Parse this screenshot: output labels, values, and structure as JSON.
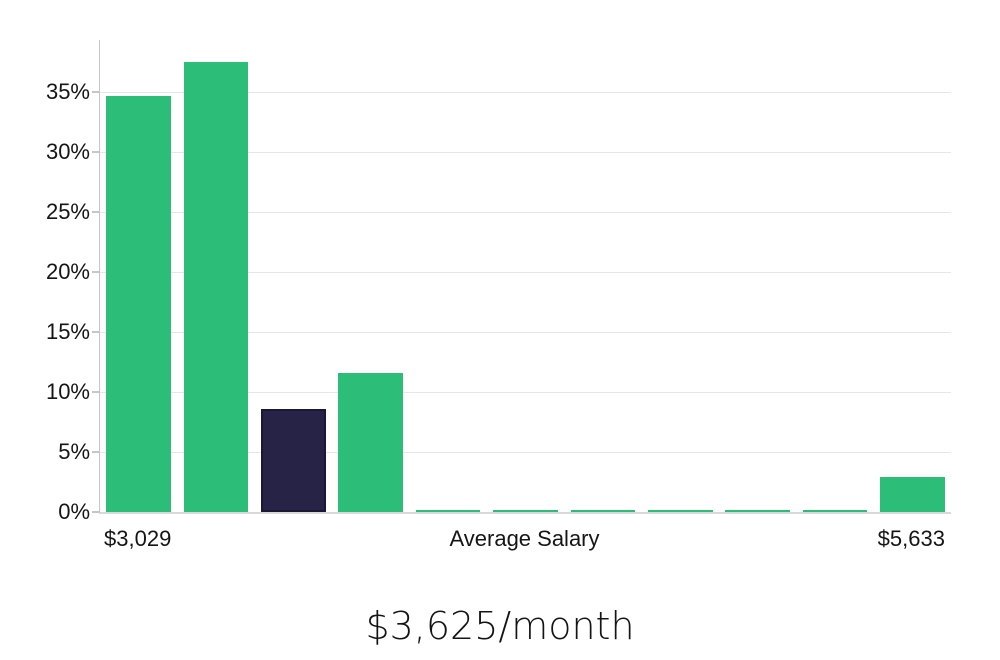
{
  "chart_data": {
    "type": "bar",
    "title": "$3,625/month",
    "y_axis": {
      "tick_values": [
        0,
        5,
        10,
        15,
        20,
        25,
        30,
        35
      ],
      "tick_labels": [
        "0%",
        "5%",
        "10%",
        "15%",
        "20%",
        "25%",
        "30%",
        "35%"
      ],
      "range": [
        0,
        39.3
      ],
      "grid": true
    },
    "x_axis": {
      "labels": [
        {
          "text": "$3,029",
          "anchor": "bar",
          "bar_index": 0
        },
        {
          "text": "Average Salary",
          "anchor": "center"
        },
        {
          "text": "$5,633",
          "anchor": "bar",
          "bar_index": 10
        }
      ]
    },
    "series": [
      {
        "name": "salary-distribution",
        "values": [
          34.6,
          37.5,
          8.6,
          11.6,
          0.15,
          0.15,
          0.15,
          0.15,
          0.15,
          0.15,
          2.9
        ],
        "bar_colors": [
          "green",
          "green",
          "dark",
          "green",
          "green",
          "green",
          "green",
          "green",
          "green",
          "green",
          "green"
        ]
      }
    ],
    "colors": {
      "green": "#2cbd78",
      "dark": "#272347",
      "dark_edge": "#1b1836",
      "gridline": "#e6e6e6",
      "axis": "#c6c6c6",
      "text": "#151515"
    }
  }
}
